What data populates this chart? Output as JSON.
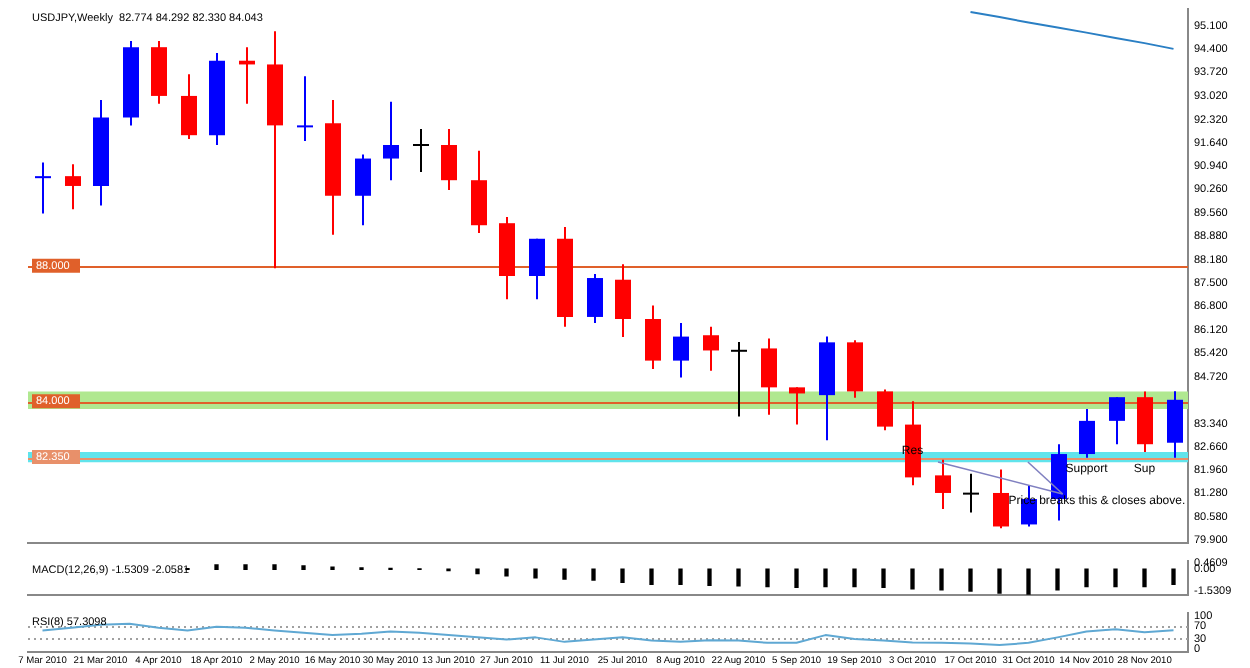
{
  "chart_data": [
    {
      "type": "candlestick",
      "title": "USDJPY,Weekly  82.774 84.292 82.330 84.043",
      "categories": [
        "7 Mar 2010",
        null,
        "21 Mar 2010",
        null,
        "4 Apr 2010",
        null,
        "18 Apr 2010",
        null,
        "2 May 2010",
        null,
        "16 May 2010",
        null,
        "30 May 2010",
        null,
        "13 Jun 2010",
        null,
        "27 Jun 2010",
        null,
        "11 Jul 2010",
        null,
        "25 Jul 2010",
        null,
        "8 Aug 2010",
        null,
        "22 Aug 2010",
        null,
        "5 Sep 2010",
        null,
        "19 Sep 2010",
        null,
        "3 Oct 2010",
        null,
        "17 Oct 2010",
        null,
        "31 Oct 2010",
        null,
        "14 Nov 2010",
        null,
        "28 Nov 2010",
        null
      ],
      "ohlc": [
        [
          90.59,
          91.05,
          89.55,
          90.65
        ],
        [
          90.65,
          91.0,
          89.67,
          90.36
        ],
        [
          90.36,
          92.9,
          89.78,
          92.38
        ],
        [
          92.38,
          94.64,
          92.15,
          94.46
        ],
        [
          94.46,
          94.64,
          92.79,
          93.02
        ],
        [
          93.02,
          93.66,
          91.75,
          91.86
        ],
        [
          91.86,
          94.29,
          91.57,
          94.06
        ],
        [
          94.06,
          94.46,
          92.79,
          93.95
        ],
        [
          93.95,
          94.93,
          87.93,
          92.15
        ],
        [
          92.1,
          93.6,
          91.69,
          92.15
        ],
        [
          92.21,
          92.9,
          88.92,
          90.07
        ],
        [
          90.07,
          91.29,
          89.2,
          91.17
        ],
        [
          91.17,
          92.85,
          90.53,
          91.57
        ],
        [
          91.6,
          92.04,
          90.77,
          91.57
        ],
        [
          91.57,
          92.04,
          90.24,
          90.53
        ],
        [
          90.53,
          91.4,
          88.97,
          89.2
        ],
        [
          89.26,
          89.44,
          87.01,
          87.7
        ],
        [
          87.7,
          88.8,
          87.01,
          88.8
        ],
        [
          88.8,
          89.15,
          86.2,
          86.49
        ],
        [
          86.49,
          87.76,
          86.31,
          87.64
        ],
        [
          87.59,
          88.05,
          85.9,
          86.43
        ],
        [
          86.43,
          86.83,
          84.95,
          85.2
        ],
        [
          85.2,
          86.31,
          84.7,
          85.91
        ],
        [
          85.95,
          86.2,
          84.9,
          85.5
        ],
        [
          85.52,
          85.75,
          83.55,
          85.5
        ],
        [
          85.56,
          85.85,
          83.6,
          84.41
        ],
        [
          84.41,
          84.41,
          83.31,
          84.23
        ],
        [
          84.18,
          85.91,
          82.85,
          85.74
        ],
        [
          85.74,
          85.8,
          84.1,
          84.29
        ],
        [
          84.29,
          84.35,
          83.14,
          83.25
        ],
        [
          83.31,
          84.0,
          81.52,
          81.75
        ],
        [
          81.81,
          82.27,
          80.82,
          81.29
        ],
        [
          81.3,
          81.86,
          80.71,
          81.28
        ],
        [
          81.29,
          81.98,
          80.25,
          80.3
        ],
        [
          80.36,
          81.52,
          80.3,
          81.11
        ],
        [
          81.11,
          82.73,
          80.48,
          82.44
        ],
        [
          82.44,
          83.77,
          82.33,
          83.42
        ],
        [
          83.42,
          84.12,
          82.73,
          84.12
        ],
        [
          84.12,
          84.29,
          82.5,
          82.73
        ],
        [
          82.774,
          84.292,
          82.33,
          84.043
        ]
      ],
      "colors": [
        "#0000ff",
        "#ff0000",
        "#0000ff",
        "#0000ff",
        "#ff0000",
        "#ff0000",
        "#0000ff",
        "#ff0000",
        "#ff0000",
        "#0000ff",
        "#ff0000",
        "#0000ff",
        "#0000ff",
        "#000000",
        "#ff0000",
        "#ff0000",
        "#ff0000",
        "#0000ff",
        "#ff0000",
        "#0000ff",
        "#ff0000",
        "#ff0000",
        "#0000ff",
        "#ff0000",
        "#000000",
        "#ff0000",
        "#ff0000",
        "#0000ff",
        "#ff0000",
        "#ff0000",
        "#ff0000",
        "#ff0000",
        "#000000",
        "#ff0000",
        "#0000ff",
        "#0000ff",
        "#0000ff",
        "#0000ff",
        "#ff0000",
        "#0000ff"
      ],
      "series": [
        {
          "type": "line",
          "color": "#2a7fc4",
          "values": [
            null,
            null,
            null,
            null,
            null,
            null,
            null,
            null,
            null,
            null,
            null,
            null,
            null,
            null,
            null,
            null,
            null,
            null,
            null,
            null,
            null,
            null,
            null,
            null,
            null,
            null,
            null,
            null,
            null,
            null,
            null,
            null,
            95.5,
            95.35,
            95.19,
            95.04,
            94.89,
            94.73,
            94.58,
            94.41
          ]
        }
      ],
      "ylim": [
        79.8,
        95.6
      ],
      "yticks": [
        {
          "value": 95.1,
          "label": "95.100"
        },
        {
          "value": 94.4,
          "label": "94.400"
        },
        {
          "value": 93.72,
          "label": "93.720"
        },
        {
          "value": 93.02,
          "label": "93.020"
        },
        {
          "value": 92.32,
          "label": "92.320"
        },
        {
          "value": 91.64,
          "label": "91.640"
        },
        {
          "value": 90.94,
          "label": "90.940"
        },
        {
          "value": 90.26,
          "label": "90.260"
        },
        {
          "value": 89.56,
          "label": "89.560"
        },
        {
          "value": 88.88,
          "label": "88.880"
        },
        {
          "value": 88.18,
          "label": "88.180"
        },
        {
          "value": 87.5,
          "label": "87.500"
        },
        {
          "value": 86.8,
          "label": "86.800"
        },
        {
          "value": 86.12,
          "label": "86.120"
        },
        {
          "value": 85.42,
          "label": "85.420"
        },
        {
          "value": 84.72,
          "label": "84.720"
        },
        {
          "value": 83.34,
          "label": "83.340"
        },
        {
          "value": 82.66,
          "label": "82.660"
        },
        {
          "value": 81.96,
          "label": "81.960"
        },
        {
          "value": 81.28,
          "label": "81.280"
        },
        {
          "value": 80.58,
          "label": "80.580"
        },
        {
          "value": 79.9,
          "label": "79.900"
        }
      ],
      "ref_lines": [
        {
          "axis": "y",
          "value": 88.0,
          "label": "88.000",
          "color": "#e0602a"
        },
        {
          "axis": "y",
          "value": 84.0,
          "label": "84.000",
          "color": "#e0602a"
        },
        {
          "axis": "y",
          "value": 82.35,
          "label": "82.350",
          "color": "#e8906a"
        }
      ],
      "bands": [
        {
          "axis": "y",
          "from": 83.77,
          "to": 84.29,
          "color": "#b0e890"
        },
        {
          "axis": "y",
          "from": 82.2,
          "to": 82.5,
          "color": "#60e4ec"
        }
      ],
      "annotations": [
        {
          "text": "Res",
          "x": "3 Oct 2010",
          "y": 82.55
        },
        {
          "text": "Support",
          "x": "14 Nov 2010",
          "y": 82.0
        },
        {
          "text": "Sup",
          "x": "28 Nov 2010",
          "y": 82.0
        },
        {
          "text": "Price breaks this & closes above.",
          "x": "31 Oct 2010",
          "y": 82.35
        }
      ],
      "tick_labels": "y"
    },
    {
      "type": "bar",
      "title": "MACD(12,26,9) -1.5309 -2.0581",
      "categories": [
        "7 Mar 2010",
        null,
        "21 Mar 2010",
        null,
        "4 Apr 2010",
        null,
        "18 Apr 2010",
        null,
        "2 May 2010",
        null,
        "16 May 2010",
        null,
        "30 May 2010",
        null,
        "13 Jun 2010",
        null,
        "27 Jun 2010",
        null,
        "11 Jul 2010",
        null,
        "25 Jul 2010",
        null,
        "8 Aug 2010",
        null,
        "22 Aug 2010",
        null,
        "5 Sep 2010",
        null,
        "19 Sep 2010",
        null,
        "3 Oct 2010",
        null,
        "17 Oct 2010",
        null,
        "31 Oct 2010",
        null,
        "14 Nov 2010",
        null,
        "28 Nov 2010",
        null
      ],
      "values": [
        null,
        null,
        null,
        null,
        null,
        0.05,
        0.31,
        0.31,
        0.31,
        0.24,
        0.15,
        0.09,
        0.06,
        0.02,
        -0.09,
        -0.31,
        -0.46,
        -0.61,
        -0.7,
        -0.77,
        -0.92,
        -1.07,
        -1.07,
        -1.13,
        -1.16,
        -1.22,
        -1.28,
        -1.22,
        -1.22,
        -1.28,
        -1.38,
        -1.44,
        -1.53,
        -1.68,
        -1.74,
        -1.44,
        -1.22,
        -1.22,
        -1.22,
        -1.07
      ],
      "color": "#000000",
      "ylim": [
        -1.84,
        0.61
      ],
      "yticks": [
        {
          "value": 0.4609,
          "label": "0.4609"
        },
        {
          "value": 0,
          "label": "0.00"
        },
        {
          "value": -1.5309,
          "label": "-1.5309"
        }
      ],
      "tick_labels": "y"
    },
    {
      "type": "line",
      "title": "RSI(8) 57.3098",
      "categories": [
        "7 Mar 2010",
        null,
        "21 Mar 2010",
        null,
        "4 Apr 2010",
        null,
        "18 Apr 2010",
        null,
        "2 May 2010",
        null,
        "16 May 2010",
        null,
        "30 May 2010",
        null,
        "13 Jun 2010",
        null,
        "27 Jun 2010",
        null,
        "11 Jul 2010",
        null,
        "25 Jul 2010",
        null,
        "8 Aug 2010",
        null,
        "22 Aug 2010",
        null,
        "5 Sep 2010",
        null,
        "19 Sep 2010",
        null,
        "3 Oct 2010",
        null,
        "17 Oct 2010",
        null,
        "31 Oct 2010",
        null,
        "14 Nov 2010",
        null,
        "28 Nov 2010",
        null
      ],
      "values": [
        56,
        65,
        74,
        77,
        65,
        56,
        68,
        65,
        56,
        49,
        42,
        46,
        53,
        49,
        42,
        35,
        28,
        35,
        21,
        28,
        35,
        25,
        21,
        26,
        25,
        18,
        18,
        42,
        30,
        25,
        19,
        18,
        16,
        11,
        18,
        35,
        53,
        60,
        51,
        57
      ],
      "color": "#5fa8d3",
      "ylim": [
        -12,
        112
      ],
      "yticks": [
        100,
        70,
        30,
        0
      ],
      "ref_lines": [
        {
          "axis": "y",
          "value": 70,
          "color": "#a0a0a0",
          "line_style": "dotted"
        },
        {
          "axis": "y",
          "value": 30,
          "color": "#a0a0a0",
          "line_style": "dotted"
        }
      ]
    }
  ]
}
